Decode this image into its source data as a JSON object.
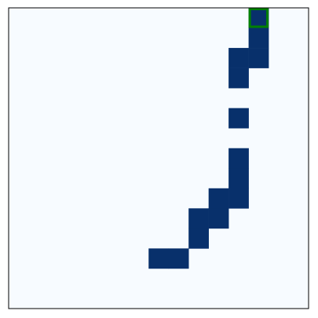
{
  "grid": {
    "cols": 15,
    "rows": 15,
    "background_color": "#f7fbff",
    "cell_color": "#08306b",
    "border_color": "#000000",
    "highlight_color": "#008000",
    "filled_cells": [
      {
        "col": 12,
        "row": 0
      },
      {
        "col": 12,
        "row": 1
      },
      {
        "col": 11,
        "row": 2
      },
      {
        "col": 12,
        "row": 2
      },
      {
        "col": 11,
        "row": 3
      },
      {
        "col": 11,
        "row": 5
      },
      {
        "col": 11,
        "row": 7
      },
      {
        "col": 11,
        "row": 8
      },
      {
        "col": 10,
        "row": 9
      },
      {
        "col": 11,
        "row": 9
      },
      {
        "col": 9,
        "row": 10
      },
      {
        "col": 10,
        "row": 10
      },
      {
        "col": 9,
        "row": 11
      },
      {
        "col": 7,
        "row": 12
      },
      {
        "col": 8,
        "row": 12
      }
    ],
    "highlighted_cell": {
      "col": 12,
      "row": 0
    }
  }
}
